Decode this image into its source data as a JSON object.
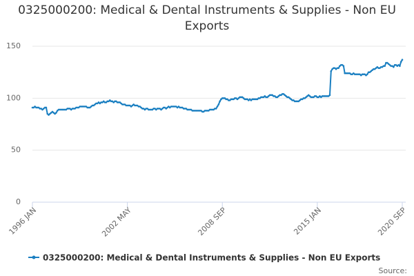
{
  "chart_data": {
    "type": "line",
    "title": "0325000200: Medical & Dental Instruments & Supplies - Non EU Exports",
    "source": "Source:",
    "categories": [
      "1996 JAN",
      null,
      null,
      null,
      null,
      null,
      null,
      null,
      null,
      null,
      null,
      null,
      null,
      null,
      null,
      null,
      null,
      null,
      null,
      null,
      null,
      null,
      null,
      null,
      null,
      null,
      null,
      null,
      null,
      null,
      null,
      null,
      null,
      null,
      null,
      null,
      null,
      null,
      null,
      null,
      null,
      null,
      null,
      null,
      null,
      null,
      null,
      null,
      null,
      null,
      null,
      null,
      null,
      null,
      null,
      null,
      null,
      null,
      null,
      null,
      null,
      null,
      null,
      null,
      null,
      null,
      null,
      null,
      null,
      null,
      null,
      null,
      null,
      null,
      null,
      null,
      "2002 MAY",
      null,
      null,
      null,
      null,
      null,
      null,
      null,
      null,
      null,
      null,
      null,
      null,
      null,
      null,
      null,
      null,
      null,
      null,
      null,
      null,
      null,
      null,
      null,
      null,
      null,
      null,
      null,
      null,
      null,
      null,
      null,
      null,
      null,
      null,
      null,
      null,
      null,
      null,
      null,
      null,
      null,
      null,
      null,
      null,
      null,
      null,
      null,
      null,
      null,
      null,
      null,
      null,
      null,
      null,
      null,
      null,
      null,
      null,
      null,
      null,
      null,
      null,
      null,
      null,
      null,
      null,
      null,
      null,
      null,
      null,
      null,
      null,
      null,
      null,
      null,
      "2008 SEP",
      null,
      null,
      null,
      null,
      null,
      null,
      null,
      null,
      null,
      null,
      null,
      null,
      null,
      null,
      null,
      null,
      null,
      null,
      null,
      null,
      null,
      null,
      null,
      null,
      null,
      null,
      null,
      null,
      null,
      null,
      null,
      null,
      null,
      null,
      null,
      null,
      null,
      null,
      null,
      null,
      null,
      null,
      null,
      null,
      null,
      null,
      null,
      null,
      null,
      null,
      null,
      null,
      null,
      null,
      null,
      null,
      null,
      null,
      null,
      null,
      null,
      null,
      null,
      null,
      null,
      null,
      null,
      null,
      null,
      null,
      null,
      null,
      null,
      null,
      null,
      "2015 JAN",
      null,
      null,
      null,
      null,
      null,
      null,
      null,
      null,
      null,
      null,
      null,
      null,
      null,
      null,
      null,
      null,
      null,
      null,
      null,
      null,
      null,
      null,
      null,
      null,
      null,
      null,
      null,
      null,
      null,
      null,
      null,
      null,
      null,
      null,
      null,
      null,
      null,
      null,
      null,
      null,
      null,
      null,
      null,
      null,
      null,
      null,
      null,
      null,
      null,
      null,
      null,
      null,
      null,
      null,
      null,
      null,
      null,
      null,
      null,
      null,
      null,
      null,
      null,
      null,
      null,
      null,
      null,
      "2020 SEP"
    ],
    "series": [
      {
        "name": "0325000200: Medical & Dental Instruments & Supplies - Non EU Exports",
        "color": "#1a7fc1",
        "values": [
          91,
          91,
          92,
          91,
          91,
          91,
          90,
          90,
          89,
          90,
          91,
          91,
          85,
          84,
          85,
          86,
          87,
          86,
          85,
          86,
          88,
          89,
          89,
          89,
          89,
          89,
          89,
          89,
          90,
          90,
          90,
          89,
          90,
          90,
          90,
          91,
          91,
          91,
          92,
          92,
          92,
          92,
          92,
          92,
          91,
          91,
          91,
          92,
          93,
          93,
          94,
          95,
          95,
          96,
          95,
          96,
          96,
          97,
          96,
          96,
          97,
          97,
          98,
          97,
          97,
          96,
          97,
          97,
          96,
          96,
          96,
          95,
          94,
          94,
          94,
          93,
          93,
          93,
          93,
          92,
          93,
          94,
          93,
          93,
          93,
          92,
          92,
          91,
          90,
          90,
          89,
          90,
          90,
          89,
          89,
          89,
          89,
          90,
          90,
          89,
          90,
          90,
          90,
          89,
          90,
          91,
          91,
          90,
          91,
          92,
          91,
          92,
          92,
          92,
          92,
          92,
          91,
          92,
          91,
          91,
          91,
          90,
          90,
          90,
          89,
          89,
          89,
          89,
          88,
          88,
          88,
          88,
          88,
          88,
          88,
          88,
          87,
          87,
          88,
          88,
          88,
          88,
          89,
          89,
          89,
          89,
          90,
          90,
          92,
          94,
          97,
          99,
          100,
          100,
          100,
          99,
          99,
          98,
          98,
          99,
          99,
          99,
          100,
          100,
          99,
          100,
          101,
          101,
          101,
          100,
          99,
          99,
          99,
          98,
          99,
          98,
          99,
          99,
          99,
          99,
          99,
          100,
          100,
          101,
          101,
          101,
          102,
          101,
          101,
          102,
          103,
          103,
          103,
          102,
          102,
          101,
          101,
          102,
          103,
          103,
          104,
          104,
          103,
          102,
          101,
          101,
          100,
          99,
          98,
          98,
          97,
          97,
          97,
          97,
          98,
          99,
          99,
          100,
          100,
          101,
          102,
          103,
          102,
          101,
          101,
          101,
          102,
          102,
          101,
          101,
          102,
          101,
          102,
          102,
          102,
          102,
          102,
          102,
          103,
          126,
          128,
          129,
          129,
          128,
          129,
          129,
          131,
          132,
          132,
          131,
          124,
          124,
          124,
          124,
          124,
          123,
          123,
          124,
          123,
          123,
          123,
          123,
          123,
          122,
          123,
          123,
          123,
          122,
          123,
          125,
          125,
          126,
          127,
          128,
          128,
          129,
          130,
          129,
          129,
          130,
          130,
          131,
          131,
          134,
          134,
          133,
          132,
          131,
          131,
          130,
          132,
          132,
          131,
          132,
          131,
          135,
          137
        ]
      }
    ],
    "ylim": [
      0,
      150
    ],
    "yticks": [
      0,
      50,
      100,
      150
    ],
    "grid": true
  }
}
